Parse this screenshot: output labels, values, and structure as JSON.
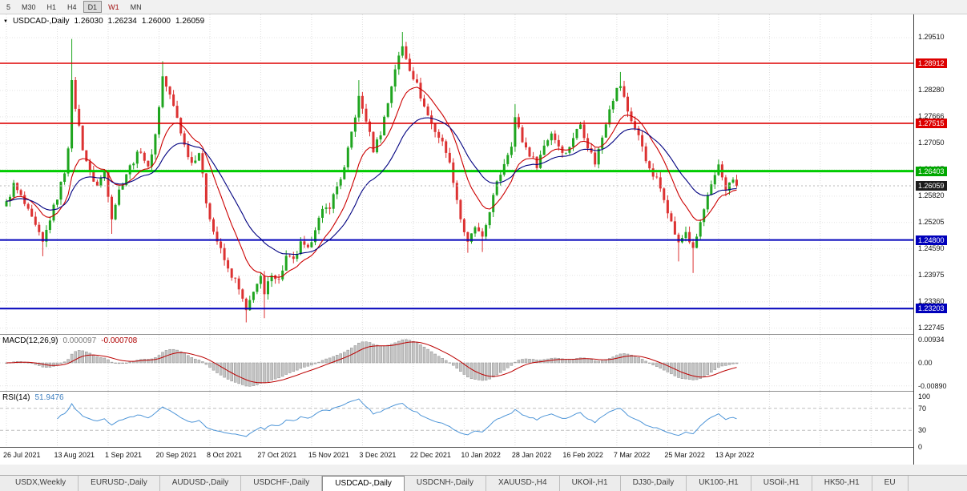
{
  "toolbar": {
    "buttons": [
      "5",
      "M30",
      "H1",
      "H4",
      "D1",
      "W1",
      "MN"
    ],
    "selected": "D1",
    "red_button": "W1"
  },
  "header": {
    "dropdown_icon": "▼",
    "symbol": "USDCAD-,Daily",
    "open": "1.26030",
    "high": "1.26234",
    "low": "1.26000",
    "close": "1.26059"
  },
  "price_axis": {
    "ticks": [
      "1.29510",
      "1.28280",
      "1.27666",
      "1.27050",
      "1.26435",
      "1.25820",
      "1.25205",
      "1.24590",
      "1.23975",
      "1.23360",
      "1.22745"
    ],
    "labels": [
      {
        "text": "1.28912",
        "price": 1.28912,
        "bg": "#dd0000"
      },
      {
        "text": "1.27515",
        "price": 1.27515,
        "bg": "#dd0000"
      },
      {
        "text": "1.26403",
        "price": 1.26403,
        "bg": "#00a800"
      },
      {
        "text": "1.26059",
        "price": 1.26059,
        "bg": "#1c1c1c"
      },
      {
        "text": "1.24800",
        "price": 1.248,
        "bg": "#0000bb"
      },
      {
        "text": "1.23203",
        "price": 1.23203,
        "bg": "#0000bb"
      }
    ]
  },
  "chart_data": [
    {
      "type": "candlestick",
      "symbol": "USDCAD",
      "timeframe": "Daily",
      "ylim": [
        1.2261,
        1.3005
      ],
      "n_candles": 202,
      "last_close": 1.26059,
      "current_price": 1.26059,
      "up_color": "#1fa51f",
      "down_color": "#dc3232",
      "close_anchors": [
        [
          0,
          1.2565
        ],
        [
          2,
          1.2608
        ],
        [
          4,
          1.258
        ],
        [
          6,
          1.2545
        ],
        [
          8,
          1.251
        ],
        [
          10,
          1.2472
        ],
        [
          12,
          1.253
        ],
        [
          14,
          1.258
        ],
        [
          16,
          1.264
        ],
        [
          17,
          1.27
        ],
        [
          18,
          1.2845
        ],
        [
          19,
          1.279
        ],
        [
          21,
          1.2695
        ],
        [
          23,
          1.2635
        ],
        [
          25,
          1.2605
        ],
        [
          27,
          1.264
        ],
        [
          29,
          1.2535
        ],
        [
          31,
          1.2595
        ],
        [
          33,
          1.2635
        ],
        [
          35,
          1.2665
        ],
        [
          37,
          1.269
        ],
        [
          39,
          1.2645
        ],
        [
          41,
          1.2725
        ],
        [
          43,
          1.286
        ],
        [
          45,
          1.2815
        ],
        [
          47,
          1.2765
        ],
        [
          49,
          1.27
        ],
        [
          51,
          1.266
        ],
        [
          53,
          1.2685
        ],
        [
          55,
          1.257
        ],
        [
          57,
          1.25
        ],
        [
          59,
          1.2455
        ],
        [
          61,
          1.241
        ],
        [
          63,
          1.2385
        ],
        [
          65,
          1.234
        ],
        [
          66,
          1.231
        ],
        [
          68,
          1.2365
        ],
        [
          70,
          1.239
        ],
        [
          71,
          1.235
        ],
        [
          73,
          1.2405
        ],
        [
          75,
          1.2385
        ],
        [
          77,
          1.244
        ],
        [
          79,
          1.243
        ],
        [
          81,
          1.247
        ],
        [
          83,
          1.2455
        ],
        [
          85,
          1.251
        ],
        [
          87,
          1.2545
        ],
        [
          89,
          1.256
        ],
        [
          91,
          1.2605
        ],
        [
          93,
          1.2645
        ],
        [
          95,
          1.273
        ],
        [
          97,
          1.281
        ],
        [
          99,
          1.276
        ],
        [
          101,
          1.269
        ],
        [
          103,
          1.273
        ],
        [
          105,
          1.28
        ],
        [
          107,
          1.288
        ],
        [
          109,
          1.293
        ],
        [
          111,
          1.288
        ],
        [
          113,
          1.284
        ],
        [
          115,
          1.279
        ],
        [
          117,
          1.275
        ],
        [
          119,
          1.272
        ],
        [
          121,
          1.269
        ],
        [
          123,
          1.262
        ],
        [
          125,
          1.253
        ],
        [
          127,
          1.247
        ],
        [
          129,
          1.251
        ],
        [
          131,
          1.248
        ],
        [
          133,
          1.255
        ],
        [
          135,
          1.261
        ],
        [
          137,
          1.266
        ],
        [
          139,
          1.2705
        ],
        [
          140,
          1.2765
        ],
        [
          142,
          1.271
        ],
        [
          144,
          1.268
        ],
        [
          146,
          1.2655
        ],
        [
          148,
          1.27
        ],
        [
          150,
          1.273
        ],
        [
          152,
          1.27
        ],
        [
          154,
          1.268
        ],
        [
          156,
          1.272
        ],
        [
          158,
          1.275
        ],
        [
          160,
          1.27
        ],
        [
          162,
          1.266
        ],
        [
          164,
          1.272
        ],
        [
          166,
          1.279
        ],
        [
          168,
          1.283
        ],
        [
          169,
          1.284
        ],
        [
          171,
          1.278
        ],
        [
          173,
          1.274
        ],
        [
          175,
          1.27
        ],
        [
          177,
          1.264
        ],
        [
          179,
          1.262
        ],
        [
          181,
          1.258
        ],
        [
          183,
          1.252
        ],
        [
          185,
          1.247
        ],
        [
          187,
          1.25
        ],
        [
          189,
          1.2455
        ],
        [
          191,
          1.252
        ],
        [
          193,
          1.258
        ],
        [
          195,
          1.2625
        ],
        [
          196,
          1.2655
        ],
        [
          198,
          1.26
        ],
        [
          200,
          1.262
        ],
        [
          201,
          1.26059
        ]
      ],
      "wicks": {
        "10": {
          "l": 1.2442
        },
        "18": {
          "h": 1.2948
        },
        "29": {
          "l": 1.2494
        },
        "43": {
          "h": 1.2896
        },
        "66": {
          "l": 1.2288
        },
        "71": {
          "l": 1.2298
        },
        "97": {
          "h": 1.2852
        },
        "109": {
          "h": 1.2964
        },
        "127": {
          "l": 1.245
        },
        "131": {
          "l": 1.2452
        },
        "140": {
          "h": 1.2796
        },
        "169": {
          "h": 1.2871
        },
        "185": {
          "l": 1.243
        },
        "189": {
          "l": 1.2403
        },
        "196": {
          "h": 1.2665
        }
      },
      "ma_lines": [
        {
          "period": 12,
          "color": "#cc0000"
        },
        {
          "period": 26,
          "color": "#000080"
        }
      ],
      "hlines": [
        {
          "price": 1.28912,
          "color": "#dd0000",
          "width": 1.6
        },
        {
          "price": 1.27515,
          "color": "#dd0000",
          "width": 1.6
        },
        {
          "price": 1.26403,
          "color": "#00cc00",
          "width": 3
        },
        {
          "price": 1.248,
          "color": "#0000bb",
          "width": 2
        },
        {
          "price": 1.23203,
          "color": "#0000bb",
          "width": 2
        }
      ],
      "x_labels": [
        "26 Jul 2021",
        "13 Aug 2021",
        "1 Sep 2021",
        "20 Sep 2021",
        "8 Oct 2021",
        "27 Oct 2021",
        "15 Nov 2021",
        "3 Dec 2021",
        "22 Dec 2021",
        "10 Jan 2022",
        "28 Jan 2022",
        "16 Feb 2022",
        "7 Mar 2022",
        "25 Mar 2022",
        "13 Apr 2022"
      ],
      "x_label_interval": 14
    },
    {
      "type": "macd",
      "label": "MACD(12,26,9)",
      "value_main": "0.000097",
      "value_signal": "-0.000708",
      "params": [
        12,
        26,
        9
      ],
      "ylim": [
        -0.0108,
        0.0108
      ],
      "axis_ticks": [
        {
          "text": "0.00934",
          "value": 0.00934
        },
        {
          "text": "0.00",
          "value": 0
        },
        {
          "text": "-0.00890",
          "value": -0.0089
        }
      ],
      "hist_color": "#c4c4c4",
      "signal_color": "#bb0000"
    },
    {
      "type": "rsi",
      "label": "RSI(14)",
      "value": "51.9476",
      "period": 14,
      "ylim": [
        0,
        100
      ],
      "levels": [
        70,
        30
      ],
      "axis_ticks": [
        {
          "text": "100",
          "value": 100
        },
        {
          "text": "70",
          "value": 70
        },
        {
          "text": "30",
          "value": 30
        },
        {
          "text": "0",
          "value": 0
        }
      ],
      "line_color": "#4f96d8"
    }
  ],
  "tabs": {
    "items": [
      "USDX,Weekly",
      "EURUSD-,Daily",
      "AUDUSD-,Daily",
      "USDCHF-,Daily",
      "USDCAD-,Daily",
      "USDCNH-,Daily",
      "XAUUSD-,H4",
      "UKOil-,H1",
      "DJ30-,Daily",
      "UK100-,H1",
      "USOil-,H1",
      "HK50-,H1",
      "EU"
    ],
    "selected": "USDCAD-,Daily"
  }
}
